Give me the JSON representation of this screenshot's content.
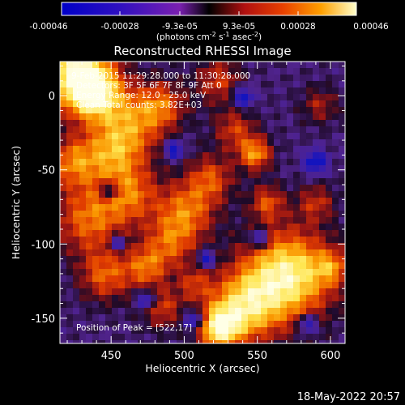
{
  "colorbar": {
    "tick_labels": [
      "-0.00046",
      "-0.00028",
      "-9.3e-05",
      "9.3e-05",
      "0.00028",
      "0.00046"
    ],
    "unit_label": "(photons cm",
    "unit_sup1": "-2",
    "unit_mid": " s",
    "unit_sup2": "-1",
    "unit_end": " asec",
    "unit_sup3": "-2",
    "unit_close": ")"
  },
  "title": "Reconstructed RHESSI Image",
  "annotations": {
    "time_range": "9-Feb-2015 11:29:28.000 to 11:30:28.000",
    "detectors": "Detectors: 3F 5F 6F 7F 8F 9F  Att 0",
    "energy_range": "Energy Range: 12.0 - 25.0 keV",
    "algorithm": "Clean     Total counts: 3.82E+03",
    "peak": "Position of Peak = [522,17]"
  },
  "axes": {
    "xlabel": "Heliocentric X (arcsec)",
    "ylabel": "Heliocentric Y (arcsec)",
    "x_ticks": [
      450,
      500,
      550,
      600
    ],
    "y_ticks": [
      0,
      -50,
      -100,
      -150
    ],
    "xlim": [
      415,
      610
    ],
    "ylim": [
      -167,
      23
    ]
  },
  "footer": {
    "date": "18-May-2022 20:57"
  },
  "colors": {
    "background": "#000000",
    "axes": "#ffffff",
    "text": "#ffffff"
  }
}
